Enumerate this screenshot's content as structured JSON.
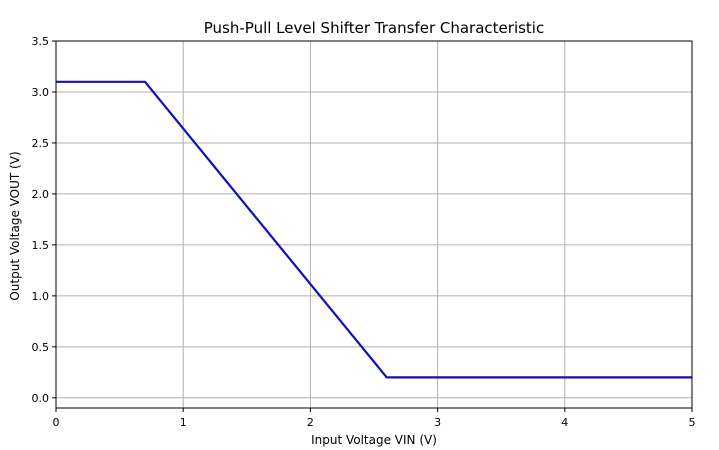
{
  "chart_data": {
    "type": "line",
    "title": "Push-Pull Level Shifter Transfer Characteristic",
    "xlabel": "Input Voltage VIN (V)",
    "ylabel": "Output Voltage VOUT (V)",
    "xlim": [
      0,
      5
    ],
    "ylim": [
      -0.1,
      3.5
    ],
    "xticks": [
      0,
      1,
      2,
      3,
      4,
      5
    ],
    "xtick_labels": [
      "0",
      "1",
      "2",
      "3",
      "4",
      "5"
    ],
    "yticks": [
      0.0,
      0.5,
      1.0,
      1.5,
      2.0,
      2.5,
      3.0,
      3.5
    ],
    "ytick_labels": [
      "0.0",
      "0.5",
      "1.0",
      "1.5",
      "2.0",
      "2.5",
      "3.0",
      "3.5"
    ],
    "grid": true,
    "series": [
      {
        "color": "#1010b8",
        "x": [
          0,
          0.7,
          2.6,
          5.0
        ],
        "y": [
          3.1,
          3.1,
          0.2,
          0.2
        ]
      }
    ]
  }
}
